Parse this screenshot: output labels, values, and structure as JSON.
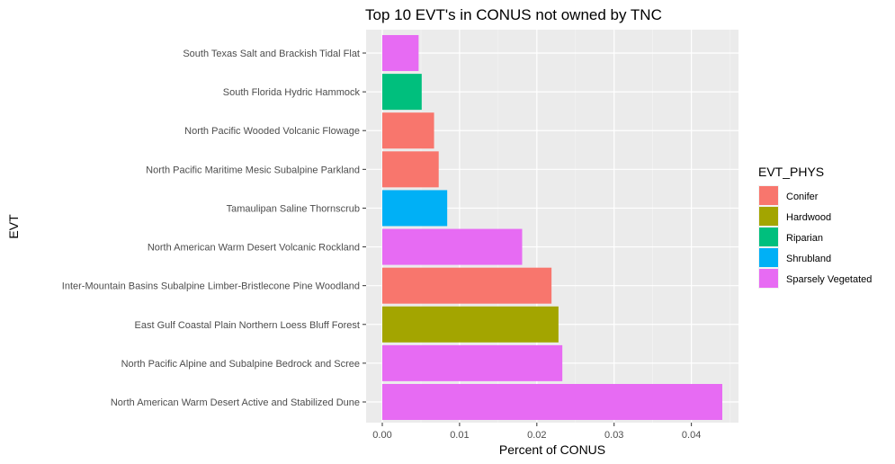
{
  "chart_data": {
    "type": "bar",
    "orientation": "horizontal",
    "title": "Top 10 EVT's in CONUS not owned by TNC",
    "xlabel": "Percent of CONUS",
    "ylabel": "EVT",
    "xlim": [
      0,
      0.0462
    ],
    "x_ticks": [
      0.0,
      0.01,
      0.02,
      0.03,
      0.04
    ],
    "x_tick_labels": [
      "0.00",
      "0.01",
      "0.02",
      "0.03",
      "0.04"
    ],
    "grid": true,
    "legend_position": "right",
    "legend": {
      "title": "EVT_PHYS",
      "entries": [
        {
          "label": "Conifer",
          "color": "#F8766D"
        },
        {
          "label": "Hardwood",
          "color": "#A3A500"
        },
        {
          "label": "Riparian",
          "color": "#00BF7D"
        },
        {
          "label": "Shrubland",
          "color": "#00B0F6"
        },
        {
          "label": "Sparsely Vegetated",
          "color": "#E76BF3"
        }
      ]
    },
    "bars": [
      {
        "category": "South Texas Salt and Brackish Tidal Flat",
        "value": 0.0047,
        "group": "Sparsely Vegetated"
      },
      {
        "category": "South Florida Hydric Hammock",
        "value": 0.0051,
        "group": "Riparian"
      },
      {
        "category": "North Pacific Wooded Volcanic Flowage",
        "value": 0.0067,
        "group": "Conifer"
      },
      {
        "category": "North Pacific Maritime Mesic Subalpine Parkland",
        "value": 0.0073,
        "group": "Conifer"
      },
      {
        "category": "Tamaulipan Saline Thornscrub",
        "value": 0.0084,
        "group": "Shrubland"
      },
      {
        "category": "North American Warm Desert Volcanic Rockland",
        "value": 0.0181,
        "group": "Sparsely Vegetated"
      },
      {
        "category": "Inter-Mountain Basins Subalpine Limber-Bristlecone Pine Woodland",
        "value": 0.0219,
        "group": "Conifer"
      },
      {
        "category": "East Gulf Coastal Plain Northern Loess Bluff Forest",
        "value": 0.0228,
        "group": "Hardwood"
      },
      {
        "category": "North Pacific Alpine and Subalpine Bedrock and Scree",
        "value": 0.0233,
        "group": "Sparsely Vegetated"
      },
      {
        "category": "North American Warm Desert Active and Stabilized Dune",
        "value": 0.044,
        "group": "Sparsely Vegetated"
      }
    ]
  }
}
